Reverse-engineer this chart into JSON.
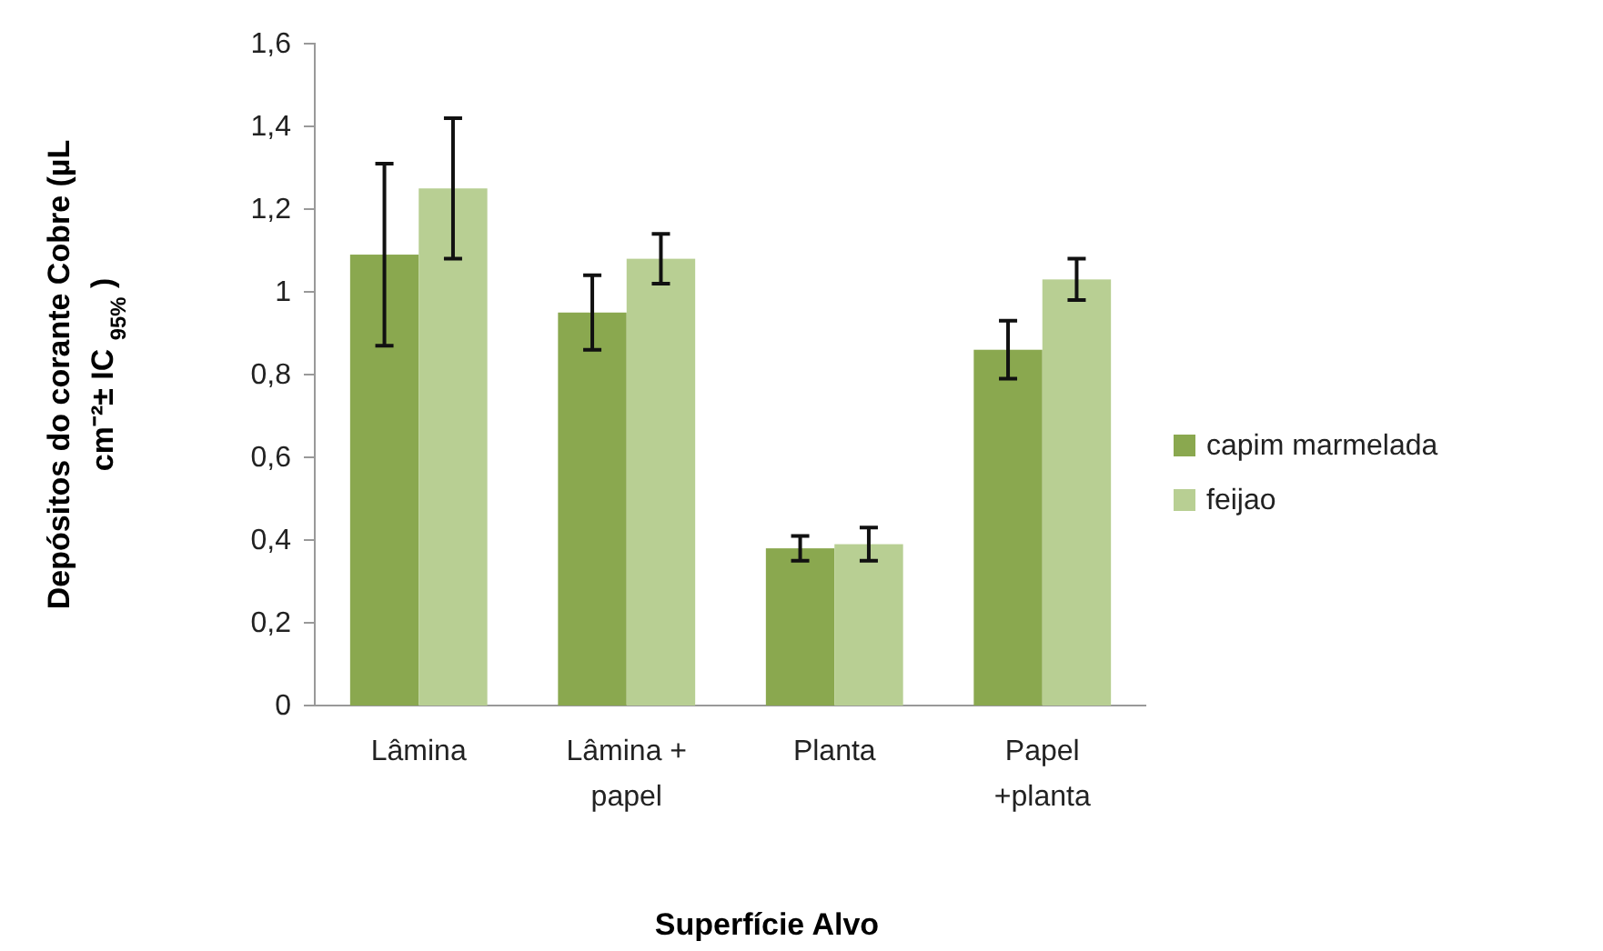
{
  "chart_data": {
    "type": "bar",
    "xlabel": "Superfície Alvo",
    "ylabel": "Depósitos do corante Cobre (µL\ncm⁻²± IC $_{95%}$ )",
    "categories": [
      "Lâmina",
      "Lâmina +\npapel",
      "Planta",
      "Papel\n+planta"
    ],
    "series": [
      {
        "name": "capim marmelada",
        "color": "#8aa84f",
        "values": [
          1.09,
          0.95,
          0.38,
          0.86
        ],
        "errors": [
          [
            0.87,
            1.31
          ],
          [
            0.86,
            1.04
          ],
          [
            0.35,
            0.41
          ],
          [
            0.79,
            0.93
          ]
        ]
      },
      {
        "name": "feijao",
        "color": "#b8cf93",
        "values": [
          1.25,
          1.08,
          0.39,
          1.03
        ],
        "errors": [
          [
            1.08,
            1.42
          ],
          [
            1.02,
            1.14
          ],
          [
            0.35,
            0.43
          ],
          [
            0.98,
            1.08
          ]
        ]
      }
    ],
    "ylim": [
      0,
      1.6
    ],
    "yticks": [
      {
        "value": 0,
        "label": "0"
      },
      {
        "value": 0.2,
        "label": "0,2"
      },
      {
        "value": 0.4,
        "label": "0,4"
      },
      {
        "value": 0.6,
        "label": "0,6"
      },
      {
        "value": 0.8,
        "label": "0,8"
      },
      {
        "value": 1,
        "label": "1"
      },
      {
        "value": 1.2,
        "label": "1,2"
      },
      {
        "value": 1.4,
        "label": "1,4"
      },
      {
        "value": 1.6,
        "label": "1,6"
      }
    ],
    "legend": "right",
    "grid": false
  }
}
